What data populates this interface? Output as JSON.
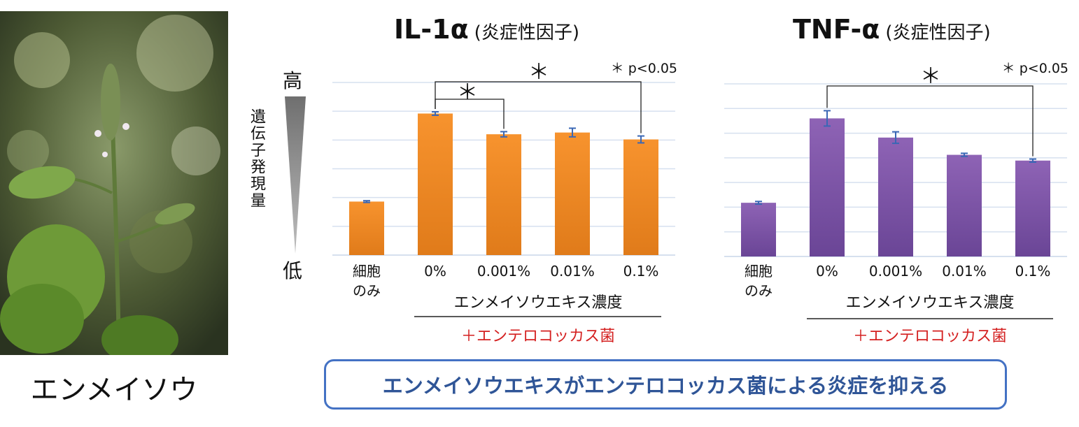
{
  "photo": {
    "label": "エンメイソウ"
  },
  "y_axis": {
    "high": "高",
    "low": "低",
    "label": "遺伝子発現量"
  },
  "conclusion": "エンメイソウエキスがエンテロコッカス菌による炎症を抑える",
  "chart_data": [
    {
      "type": "bar",
      "title": "IL-1α",
      "subtitle": "(炎症性因子)",
      "categories": [
        "細胞のみ",
        "0%",
        "0.001%",
        "0.01%",
        "0.1%"
      ],
      "category_lines": [
        [
          "細胞",
          "のみ"
        ],
        [
          "0%"
        ],
        [
          "0.001%"
        ],
        [
          "0.01%"
        ],
        [
          "0.1%"
        ]
      ],
      "values": [
        0.31,
        0.82,
        0.7,
        0.71,
        0.67
      ],
      "errors": [
        0.005,
        0.01,
        0.015,
        0.025,
        0.02
      ],
      "ylim": [
        0,
        1.0
      ],
      "gridlines": 6,
      "color_top": "#f7932e",
      "color_bottom": "#e07b1a",
      "xlabel": "エンメイソウエキス濃度",
      "group_label": "＋エンテロコッカス菌",
      "significance_note": "＊ p<0.05",
      "brackets": [
        {
          "from": 1,
          "to": 4,
          "label": "＊"
        },
        {
          "from": 1,
          "to": 2,
          "label": "＊"
        }
      ]
    },
    {
      "type": "bar",
      "title": "TNF-α",
      "subtitle": "(炎症性因子)",
      "categories": [
        "細胞のみ",
        "0%",
        "0.001%",
        "0.01%",
        "0.1%"
      ],
      "category_lines": [
        [
          "細胞",
          "のみ"
        ],
        [
          "0%"
        ],
        [
          "0.001%"
        ],
        [
          "0.01%"
        ],
        [
          "0.1%"
        ]
      ],
      "values": [
        0.28,
        0.72,
        0.62,
        0.53,
        0.5
      ],
      "errors": [
        0.007,
        0.04,
        0.03,
        0.008,
        0.008
      ],
      "ylim": [
        0,
        0.9
      ],
      "gridlines": 7,
      "color_top": "#8e63b5",
      "color_bottom": "#6a4596",
      "xlabel": "エンメイソウエキス濃度",
      "group_label": "＋エンテロコッカス菌",
      "significance_note": "＊ p<0.05",
      "brackets": [
        {
          "from": 1,
          "to": 4,
          "label": "＊"
        }
      ]
    }
  ]
}
